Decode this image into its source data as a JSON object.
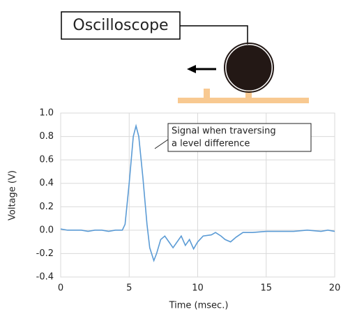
{
  "diagram": {
    "label": "Oscilloscope"
  },
  "chart_data": {
    "type": "line",
    "xlabel": "Time (msec.)",
    "ylabel": "Voltage (V)",
    "annotation": [
      "Signal when traversing",
      "a level difference"
    ],
    "x": [
      0,
      0.5,
      1,
      1.5,
      2,
      2.5,
      3,
      3.5,
      4,
      4.5,
      4.7,
      5,
      5.3,
      5.5,
      5.7,
      6,
      6.3,
      6.5,
      6.8,
      7,
      7.3,
      7.6,
      7.9,
      8.2,
      8.5,
      8.8,
      9.1,
      9.4,
      9.7,
      10,
      10.4,
      11,
      11.3,
      11.7,
      12,
      12.4,
      12.8,
      13.3,
      14,
      15,
      16,
      17,
      18,
      19,
      19.5,
      20
    ],
    "values": [
      0.01,
      0.0,
      0.0,
      0.0,
      -0.01,
      0.0,
      0.0,
      -0.01,
      0.0,
      0.0,
      0.05,
      0.4,
      0.8,
      0.89,
      0.8,
      0.45,
      0.05,
      -0.15,
      -0.26,
      -0.2,
      -0.08,
      -0.05,
      -0.1,
      -0.15,
      -0.1,
      -0.05,
      -0.13,
      -0.08,
      -0.16,
      -0.1,
      -0.05,
      -0.04,
      -0.02,
      -0.05,
      -0.08,
      -0.1,
      -0.06,
      -0.02,
      -0.02,
      -0.01,
      -0.01,
      -0.01,
      0.0,
      -0.01,
      0.0,
      -0.01
    ],
    "color": "#5b9bd5",
    "xlim": [
      0,
      20
    ],
    "xticks": [
      0,
      5,
      10,
      15,
      20
    ],
    "ylim": [
      -0.4,
      1.0
    ],
    "yticks": [
      {
        "value": -0.4,
        "label": "-0.4"
      },
      {
        "value": -0.2,
        "label": "-0.2"
      },
      {
        "value": 0,
        "label": "0.0"
      },
      0.2,
      0.4,
      0.6,
      0.8,
      {
        "value": 1,
        "label": "1.0"
      }
    ],
    "grid": true
  }
}
